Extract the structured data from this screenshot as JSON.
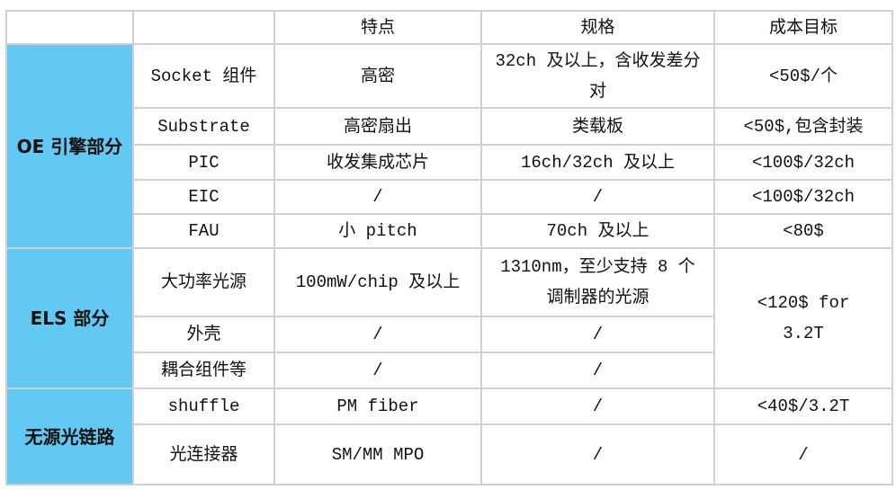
{
  "header": [
    "",
    "",
    "特点",
    "规格",
    "成本目标"
  ],
  "categories": {
    "oe": "OE 引擎部分",
    "els": "ELS 部分",
    "passive": "无源光链路"
  },
  "rows": [
    {
      "item": "Socket 组件",
      "feature": "高密",
      "spec": "32ch 及以上，含收发差分对",
      "cost": "<50$/个"
    },
    {
      "item": "Substrate",
      "feature": "高密扇出",
      "spec": "类载板",
      "cost": "<50$,包含封装"
    },
    {
      "item": "PIC",
      "feature": "收发集成芯片",
      "spec": "16ch/32ch 及以上",
      "cost": "<100$/32ch"
    },
    {
      "item": "EIC",
      "feature": "/",
      "spec": "/",
      "cost": "<100$/32ch"
    },
    {
      "item": "FAU",
      "feature": "小 pitch",
      "spec": "70ch 及以上",
      "cost": "<80$"
    },
    {
      "item": "大功率光源",
      "feature": "100mW/chip 及以上",
      "spec": "1310nm，至少支持 8 个调制器的光源",
      "cost": "<120$ for 3.2T"
    },
    {
      "item": "外壳",
      "feature": "/",
      "spec": "/"
    },
    {
      "item": "耦合组件等",
      "feature": "/",
      "spec": "/"
    },
    {
      "item": "shuffle",
      "feature": "PM fiber",
      "spec": "/",
      "cost": "<40$/3.2T"
    },
    {
      "item": "光连接器",
      "feature": "SM/MM MPO",
      "spec": "/",
      "cost": "/"
    }
  ],
  "colors": {
    "category_bg": "#62c9f2",
    "border": "#cfcfd4"
  }
}
